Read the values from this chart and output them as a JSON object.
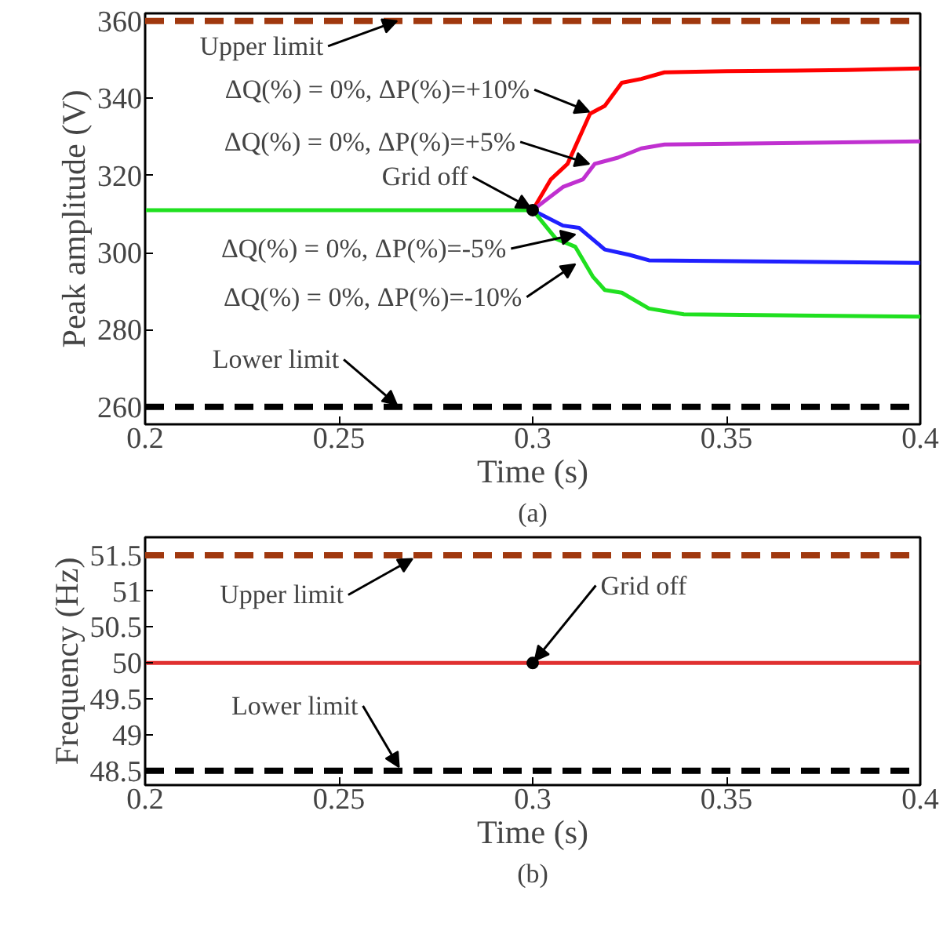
{
  "chart_data": [
    {
      "type": "line",
      "xlabel": "Time (s)",
      "ylabel": "Peak amplitude (V)",
      "xlim": [
        0.2,
        0.4
      ],
      "ylim": [
        255.5,
        362
      ],
      "xticks": [
        0.2,
        0.25,
        0.3,
        0.35,
        0.4
      ],
      "yticks": [
        260,
        280,
        300,
        320,
        340,
        360
      ],
      "grid": false,
      "series": [
        {
          "color": "#ff0000",
          "x": [
            0.3,
            0.3047,
            0.309,
            0.3148,
            0.3186,
            0.323,
            0.328,
            0.334,
            0.35,
            0.381,
            0.4
          ],
          "values": [
            311,
            319,
            323,
            336,
            338,
            344,
            345,
            346.7,
            347,
            347.3,
            347.7
          ]
        },
        {
          "color": "#c030d0",
          "x": [
            0.3,
            0.3078,
            0.313,
            0.316,
            0.322,
            0.328,
            0.334,
            0.4
          ],
          "values": [
            311,
            317,
            319,
            323,
            324.6,
            327,
            328,
            328.8
          ]
        },
        {
          "color": "#2020ff",
          "x": [
            0.3,
            0.3078,
            0.312,
            0.3186,
            0.325,
            0.33,
            0.4
          ],
          "values": [
            311,
            307,
            306.4,
            300.8,
            299.4,
            298,
            297.3
          ]
        },
        {
          "color": "#20e020",
          "x": [
            0.2,
            0.3,
            0.306,
            0.311,
            0.3155,
            0.3186,
            0.323,
            0.33,
            0.339,
            0.4
          ],
          "values": [
            311,
            311,
            303.6,
            301.5,
            293.8,
            290.3,
            289.6,
            285.5,
            284,
            283.4
          ]
        },
        {
          "type": "scatter",
          "marker": "circle",
          "color": "#000000",
          "x": [
            0.3
          ],
          "values": [
            311
          ]
        }
      ],
      "ref_lines": [
        {
          "axis": "y",
          "value": 360,
          "color": "#a0380e",
          "line_style": "dashed"
        },
        {
          "axis": "y",
          "value": 260,
          "color": "#000000",
          "line_style": "dashed"
        }
      ],
      "annotations": [
        {
          "text": "Upper limit",
          "x": 0.265,
          "y": 360
        },
        {
          "text": "ΔQ(%) = 0%, ΔP(%)=+10%",
          "x": 0.3146,
          "y": 336.5
        },
        {
          "text": "ΔQ(%) = 0%, ΔP(%)=+5%",
          "x": 0.3146,
          "y": 323
        },
        {
          "text": "Grid off",
          "x": 0.2995,
          "y": 311.5
        },
        {
          "text": "ΔQ(%) = 0%, ΔP(%)=-5%",
          "x": 0.311,
          "y": 304.7
        },
        {
          "text": "ΔQ(%) = 0%, ΔP(%)=-10%",
          "x": 0.311,
          "y": 297
        },
        {
          "text": "Lower limit",
          "x": 0.265,
          "y": 260.5
        },
        "(a)"
      ]
    },
    {
      "type": "line",
      "xlabel": "Time (s)",
      "ylabel": "Frequency (Hz)",
      "xlim": [
        0.2,
        0.4
      ],
      "ylim": [
        48.3,
        51.75
      ],
      "xticks": [
        0.2,
        0.25,
        0.3,
        0.35,
        0.4
      ],
      "yticks": [
        48.5,
        49,
        49.5,
        50,
        50.5,
        51,
        51.5
      ],
      "grid": false,
      "series": [
        {
          "color": "#e03030",
          "x": [
            0.2,
            0.4
          ],
          "values": [
            50,
            50
          ]
        },
        {
          "type": "scatter",
          "marker": "circle",
          "color": "#000000",
          "x": [
            0.3
          ],
          "values": [
            50
          ]
        }
      ],
      "ref_lines": [
        {
          "axis": "y",
          "value": 51.5,
          "color": "#a0380e",
          "line_style": "dashed"
        },
        {
          "axis": "y",
          "value": 48.5,
          "color": "#000000",
          "line_style": "dashed"
        }
      ],
      "annotations": [
        {
          "text": "Upper limit",
          "x": 0.269,
          "y": 51.45
        },
        {
          "text": "Grid off",
          "x": 0.3005,
          "y": 50.03
        },
        {
          "text": "Lower limit",
          "x": 0.2655,
          "y": 48.55
        },
        "(b)"
      ]
    }
  ]
}
